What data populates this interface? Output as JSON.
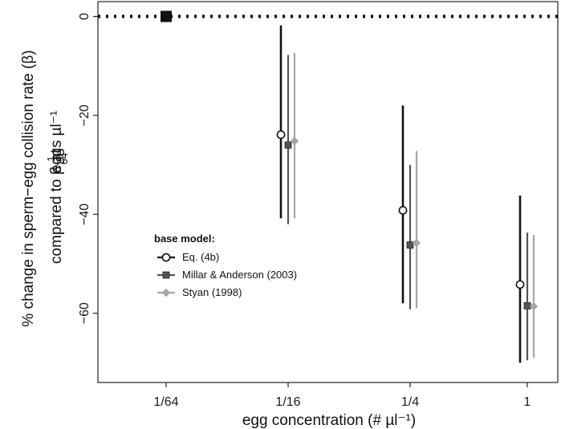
{
  "chart_data": {
    "type": "scatter",
    "subtype": "point-range with error bars",
    "xlabel": "egg concentration  (# µl⁻¹)",
    "ylabel_line1": "% change in sperm−egg collision rate (β)",
    "ylabel_line2_prefix": "compared to β at",
    "ylabel_fraction_num": "1",
    "ylabel_fraction_den": "64",
    "ylabel_line2_suffix": "eggs µl⁻¹",
    "categories": [
      "1/64",
      "1/16",
      "1/4",
      "1"
    ],
    "ylim": [
      -74,
      3
    ],
    "yticks": [
      0,
      -20,
      -40,
      -60
    ],
    "ytick_labels": [
      "0",
      "−20",
      "−40",
      "−60"
    ],
    "reference_line": {
      "y": 0,
      "style": "dotted",
      "color": "#000000"
    },
    "reference_point": {
      "category": "1/64",
      "y": 0,
      "marker": "square",
      "color": "#111111"
    },
    "legend": {
      "title": "base model:",
      "position": "center-left"
    },
    "series": [
      {
        "name": "Eq. (4b)",
        "marker": "open-circle",
        "color": "#111111",
        "points": [
          {
            "category": "1/16",
            "y": -23.9,
            "lo": -40.8,
            "hi": -1.8
          },
          {
            "category": "1/4",
            "y": -39.2,
            "lo": -58.0,
            "hi": -18.0
          },
          {
            "category": "1",
            "y": -54.2,
            "lo": -70.0,
            "hi": -36.2
          }
        ]
      },
      {
        "name": "Millar & Anderson (2003)",
        "marker": "filled-square",
        "color": "#555555",
        "points": [
          {
            "category": "1/16",
            "y": -26.0,
            "lo": -42.0,
            "hi": -7.8
          },
          {
            "category": "1/4",
            "y": -46.2,
            "lo": -59.2,
            "hi": -30.0
          },
          {
            "category": "1",
            "y": -58.5,
            "lo": -69.5,
            "hi": -43.7
          }
        ]
      },
      {
        "name": "Styan (1998)",
        "marker": "diamond",
        "color": "#a6a6a6",
        "points": [
          {
            "category": "1/16",
            "y": -25.2,
            "lo": -40.8,
            "hi": -7.4
          },
          {
            "category": "1/4",
            "y": -45.8,
            "lo": -59.0,
            "hi": -27.2
          },
          {
            "category": "1",
            "y": -58.6,
            "lo": -69.0,
            "hi": -44.2
          }
        ]
      }
    ]
  }
}
